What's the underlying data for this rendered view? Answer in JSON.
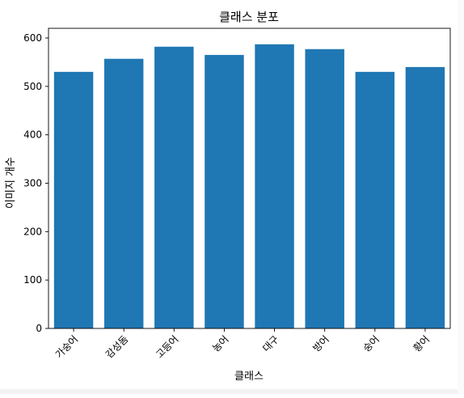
{
  "chart_data": {
    "type": "bar",
    "title": "클래스 분포",
    "xlabel": "클래스",
    "ylabel": "이미지 개수",
    "categories": [
      "가숭어",
      "감성돔",
      "고등어",
      "농어",
      "대구",
      "방어",
      "숭어",
      "황어"
    ],
    "values": [
      530,
      557,
      582,
      565,
      587,
      577,
      530,
      540
    ],
    "ylim": [
      0,
      620
    ],
    "yticks": [
      0,
      100,
      200,
      300,
      400,
      500,
      600
    ],
    "grid": false,
    "legend": "none",
    "xtick_rotation": 45
  },
  "colors": {
    "bar": "#1f77b4",
    "axis": "#000000",
    "background": "#ffffff"
  }
}
